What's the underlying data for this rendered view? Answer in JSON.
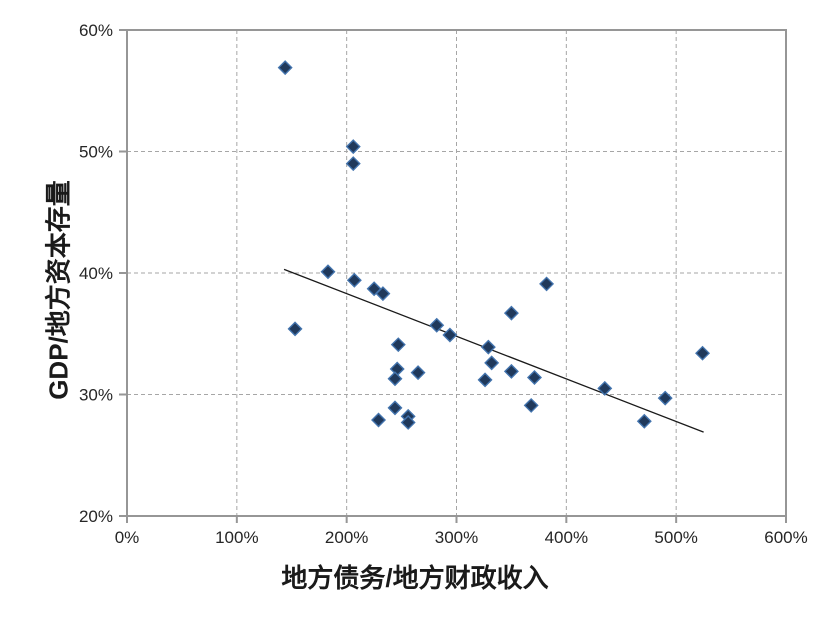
{
  "chart_data": {
    "type": "scatter",
    "title": "",
    "xlabel": "地方债务/地方财政收入",
    "ylabel": "GDP/地方资本存量",
    "xlim": [
      0,
      600
    ],
    "ylim": [
      20,
      60
    ],
    "x_tick_values": [
      0,
      100,
      200,
      300,
      400,
      500,
      600
    ],
    "x_tick_labels": [
      "0%",
      "100%",
      "200%",
      "300%",
      "400%",
      "500%",
      "600%"
    ],
    "y_tick_values": [
      20,
      30,
      40,
      50,
      60
    ],
    "y_tick_labels": [
      "20%",
      "30%",
      "40%",
      "50%",
      "60%"
    ],
    "grid": "dashed",
    "legend_position": "none",
    "marker": {
      "shape": "diamond",
      "size": 13
    },
    "points": [
      [
        144,
        56.9
      ],
      [
        206,
        50.4
      ],
      [
        206,
        49.0
      ],
      [
        183,
        40.1
      ],
      [
        207,
        39.4
      ],
      [
        225,
        38.7
      ],
      [
        233,
        38.3
      ],
      [
        153,
        35.4
      ],
      [
        247,
        34.1
      ],
      [
        246,
        32.1
      ],
      [
        265,
        31.8
      ],
      [
        244,
        31.3
      ],
      [
        244,
        28.9
      ],
      [
        229,
        27.9
      ],
      [
        256,
        28.2
      ],
      [
        256,
        27.7
      ],
      [
        282,
        35.7
      ],
      [
        294,
        34.9
      ],
      [
        329,
        33.9
      ],
      [
        332,
        32.6
      ],
      [
        350,
        31.9
      ],
      [
        326,
        31.2
      ],
      [
        371,
        31.4
      ],
      [
        368,
        29.1
      ],
      [
        350,
        36.7
      ],
      [
        382,
        39.1
      ],
      [
        435,
        30.5
      ],
      [
        490,
        29.7
      ],
      [
        471,
        27.8
      ],
      [
        524,
        33.4
      ]
    ],
    "trendline": {
      "type": "linear",
      "x1": 143,
      "y1": 40.3,
      "x2": 525,
      "y2": 26.9
    }
  },
  "colors": {
    "marker_fill": "#20395b",
    "marker_stroke": "#4273ad",
    "trendline": "#1a1a1a",
    "gridline": "#a6a6a6",
    "axis_border": "#969696",
    "tick_text": "#262626",
    "background": "#ffffff"
  }
}
